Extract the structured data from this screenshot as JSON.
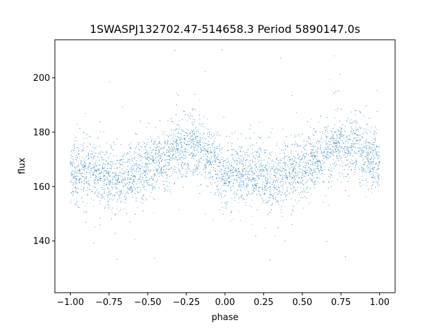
{
  "chart_data": {
    "type": "scatter",
    "title": "1SWASPJ132702.47-514658.3 Period 5890147.0s",
    "xlabel": "phase",
    "ylabel": "flux",
    "xlim": [
      -1.1,
      1.1
    ],
    "ylim": [
      121,
      214
    ],
    "x_ticks": [
      -1.0,
      -0.75,
      -0.5,
      -0.25,
      0.0,
      0.25,
      0.5,
      0.75,
      1.0
    ],
    "x_tick_labels": [
      "−1.00",
      "−0.75",
      "−0.50",
      "−0.25",
      "0.00",
      "0.25",
      "0.50",
      "0.75",
      "1.00"
    ],
    "y_ticks": [
      140,
      160,
      180,
      200
    ],
    "y_tick_labels": [
      "140",
      "160",
      "180",
      "200"
    ],
    "grid": false,
    "marker_color": "#1f77b4",
    "series": [
      {
        "x": [
          -1.0,
          -0.9,
          -0.8,
          -0.7,
          -0.6,
          -0.5,
          -0.4,
          -0.3,
          -0.2,
          -0.1,
          0.0,
          0.1,
          0.2,
          0.3,
          0.4,
          0.5,
          0.6,
          0.7,
          0.8,
          0.9,
          1.0
        ],
        "y": [
          165,
          165,
          164,
          162,
          165,
          167,
          170,
          173,
          176,
          170,
          165,
          164,
          165,
          162,
          165,
          167,
          170,
          174,
          176,
          172,
          168
        ]
      }
    ]
  }
}
